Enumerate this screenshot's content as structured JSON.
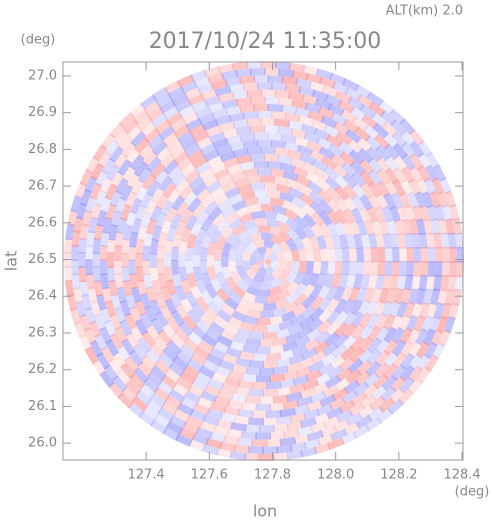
{
  "chart_data": {
    "type": "radar-ppi",
    "title": "2017/10/24 11:35:00",
    "subtitle": "ALT(km) 2.0",
    "x_label": "lon",
    "y_label": "lat",
    "x_unit": "(deg)",
    "y_unit": "(deg)",
    "xlim": [
      127.137,
      128.403
    ],
    "ylim": [
      25.954,
      27.038
    ],
    "xticks": [
      127.4,
      127.6,
      127.8,
      {
        "value": 128.0,
        "label": "128.0"
      },
      128.2,
      128.4
    ],
    "yticks": [
      {
        "value": 26.0,
        "label": "26.0"
      },
      26.1,
      26.2,
      26.3,
      26.4,
      26.5,
      26.6,
      26.7,
      26.8,
      26.9,
      {
        "value": 27.0,
        "label": "27.0"
      }
    ]
  }
}
